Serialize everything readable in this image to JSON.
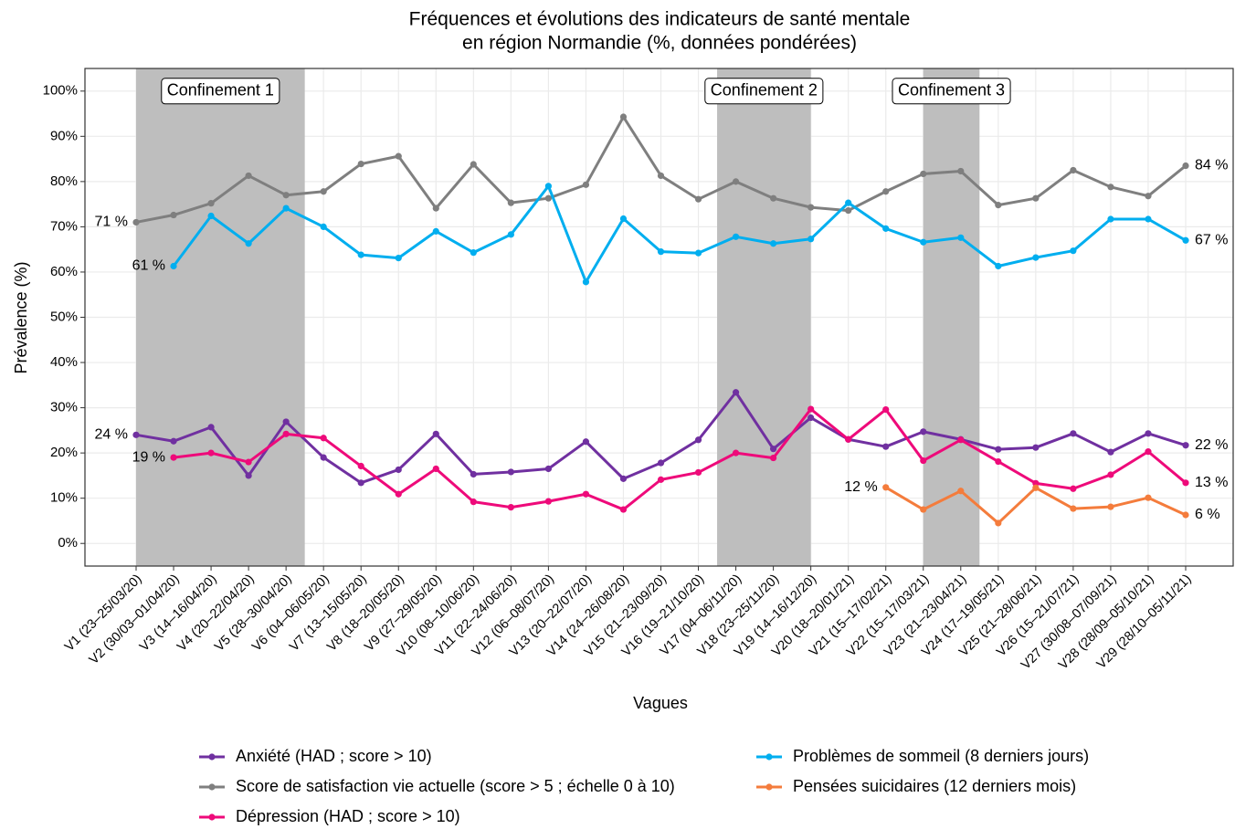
{
  "chart_data": {
    "type": "line",
    "title": [
      "Fréquences et évolutions des indicateurs de santé mentale",
      "en région Normandie (%, données pondérées)"
    ],
    "x_label": "Vagues",
    "y_label": "Prévalence (%)",
    "categories": [
      "V1 (23–25/03/20)",
      "V2 (30/03–01/04/20)",
      "V3 (14–16/04/20)",
      "V4 (20–22/04/20)",
      "V5 (28–30/04/20)",
      "V6 (04–06/05/20)",
      "V7 (13–15/05/20)",
      "V8 (18–20/05/20)",
      "V9 (27–29/05/20)",
      "V10 (08–10/06/20)",
      "V11 (22–24/06/20)",
      "V12 (06–08/07/20)",
      "V13 (20–22/07/20)",
      "V14 (24–26/08/20)",
      "V15 (21–23/09/20)",
      "V16 (19–21/10/20)",
      "V17 (04–06/11/20)",
      "V18 (23–25/11/20)",
      "V19 (14–16/12/20)",
      "V20 (18–20/01/21)",
      "V21 (15–17/02/21)",
      "V22 (15–17/03/21)",
      "V23 (21–23/04/21)",
      "V24 (17–19/05/21)",
      "V25 (21–28/06/21)",
      "V26 (15–21/07/21)",
      "V27 (30/08–07/09/21)",
      "V28 (28/09–05/10/21)",
      "V29 (28/10–05/11/21)"
    ],
    "ylim": [
      -5,
      105
    ],
    "yticks": [
      {
        "value": 0,
        "label": "0%"
      },
      {
        "value": 10,
        "label": "10%"
      },
      {
        "value": 20,
        "label": "20%"
      },
      {
        "value": 30,
        "label": "30%"
      },
      {
        "value": 40,
        "label": "40%"
      },
      {
        "value": 50,
        "label": "50%"
      },
      {
        "value": 60,
        "label": "60%"
      },
      {
        "value": 70,
        "label": "70%"
      },
      {
        "value": 80,
        "label": "80%"
      },
      {
        "value": 90,
        "label": "90%"
      },
      {
        "value": 100,
        "label": "100%"
      }
    ],
    "grid": true,
    "regions": [
      {
        "label": "Confinement 1",
        "start": 1,
        "end": 5.5
      },
      {
        "label": "Confinement 2",
        "start": 16.5,
        "end": 19
      },
      {
        "label": "Confinement 3",
        "start": 22,
        "end": 23.5
      }
    ],
    "region_color": "#bebebe",
    "series": [
      {
        "name": "Anxiété (HAD ; score > 10)",
        "color": "#7030a0",
        "values": [
          24,
          22.6,
          25.7,
          15,
          26.9,
          19,
          13.4,
          16.3,
          24.2,
          15.3,
          15.8,
          16.5,
          22.5,
          14.3,
          17.8,
          22.9,
          33.4,
          20.9,
          27.8,
          23,
          21.4,
          24.7,
          23,
          20.8,
          21.2,
          24.3,
          20.2,
          24.3,
          21.7
        ],
        "value_labels": [
          "24 %",
          null,
          null,
          null,
          null,
          null,
          null,
          null,
          null,
          null,
          null,
          null,
          null,
          null,
          null,
          null,
          null,
          null,
          null,
          null,
          null,
          null,
          null,
          null,
          null,
          null,
          null,
          null,
          "22 %"
        ]
      },
      {
        "name": "Score de satisfaction vie actuelle (score > 5 ; échelle 0 à 10)",
        "color": "#7f7f7f",
        "values": [
          71,
          72.6,
          75.2,
          81.3,
          77,
          77.8,
          83.9,
          85.6,
          74.1,
          83.8,
          75.3,
          76.3,
          79.3,
          94.3,
          81.3,
          76.1,
          80,
          76.3,
          74.3,
          73.6,
          77.8,
          81.7,
          82.3,
          74.8,
          76.3,
          82.5,
          78.8,
          76.8,
          83.5
        ],
        "value_labels": [
          "71 %",
          null,
          null,
          null,
          null,
          null,
          null,
          null,
          null,
          null,
          null,
          null,
          null,
          null,
          null,
          null,
          null,
          null,
          null,
          null,
          null,
          null,
          null,
          null,
          null,
          null,
          null,
          null,
          "84 %"
        ]
      },
      {
        "name": "Dépression (HAD ; score > 10)",
        "color": "#ee0a7a",
        "values": [
          null,
          19,
          20,
          18,
          24.2,
          23.3,
          17.1,
          10.9,
          16.5,
          9.2,
          8,
          9.3,
          10.9,
          7.5,
          14.1,
          15.7,
          20,
          18.9,
          29.7,
          23,
          29.6,
          18.3,
          22.9,
          18.1,
          13.3,
          12.1,
          15.2,
          20.3,
          13.4
        ],
        "value_labels": [
          null,
          "19 %",
          null,
          null,
          null,
          null,
          null,
          null,
          null,
          null,
          null,
          null,
          null,
          null,
          null,
          null,
          null,
          null,
          null,
          null,
          null,
          null,
          null,
          null,
          null,
          null,
          null,
          null,
          "13 %"
        ]
      },
      {
        "name": "Problèmes de sommeil (8 derniers jours)",
        "color": "#00aeef",
        "values": [
          null,
          61.3,
          72.4,
          66.3,
          74.1,
          70,
          63.8,
          63.1,
          69,
          64.3,
          68.3,
          79,
          57.8,
          71.8,
          64.5,
          64.2,
          67.8,
          66.3,
          67.3,
          75.3,
          69.6,
          66.6,
          67.6,
          61.3,
          63.2,
          64.7,
          71.7,
          71.7,
          67
        ],
        "value_labels": [
          null,
          "61 %",
          null,
          null,
          null,
          null,
          null,
          null,
          null,
          null,
          null,
          null,
          null,
          null,
          null,
          null,
          null,
          null,
          null,
          null,
          null,
          null,
          null,
          null,
          null,
          null,
          null,
          null,
          "67 %"
        ]
      },
      {
        "name": "Pensées suicidaires (12 derniers mois)",
        "color": "#f47c3c",
        "values": [
          null,
          null,
          null,
          null,
          null,
          null,
          null,
          null,
          null,
          null,
          null,
          null,
          null,
          null,
          null,
          null,
          null,
          null,
          null,
          null,
          12.4,
          7.5,
          11.6,
          4.5,
          12.3,
          7.7,
          8.1,
          10.1,
          6.3
        ],
        "value_labels": [
          null,
          null,
          null,
          null,
          null,
          null,
          null,
          null,
          null,
          null,
          null,
          null,
          null,
          null,
          null,
          null,
          null,
          null,
          null,
          null,
          "12 %",
          null,
          null,
          null,
          null,
          null,
          null,
          null,
          "6 %"
        ]
      }
    ]
  }
}
